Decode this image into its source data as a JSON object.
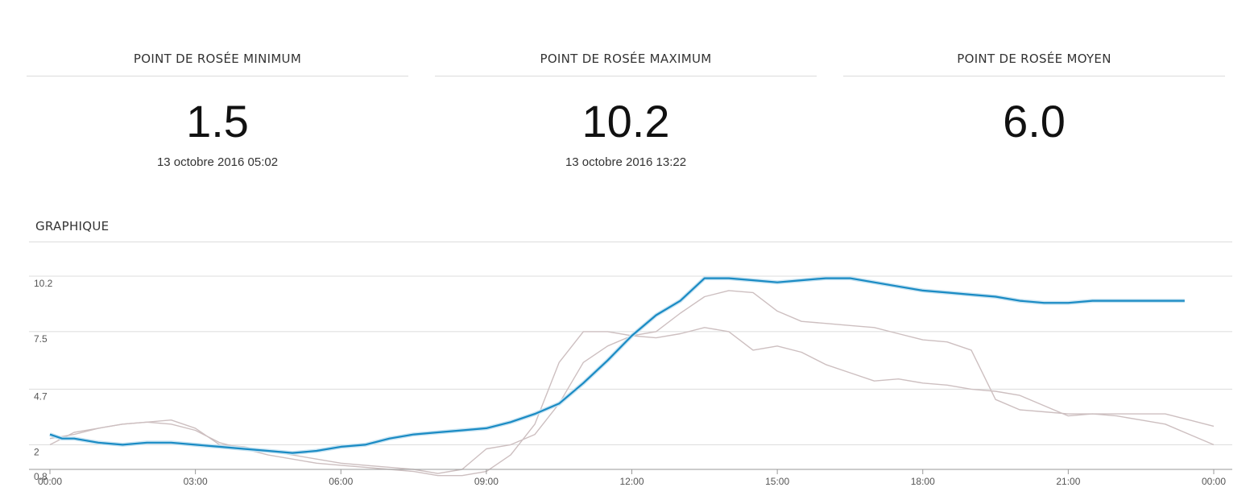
{
  "stats": {
    "min": {
      "title": "POINT DE ROSÉE MINIMUM",
      "value": "1.5",
      "date": "13 octobre 2016 05:02"
    },
    "max": {
      "title": "POINT DE ROSÉE MAXIMUM",
      "value": "10.2",
      "date": "13 octobre 2016 13:22"
    },
    "avg": {
      "title": "POINT DE ROSÉE MOYEN",
      "value": "6.0"
    }
  },
  "graph": {
    "title": "GRAPHIQUE"
  },
  "colors": {
    "main": "#1a8bc4",
    "history": "#cdbfc0",
    "grid": "#dcdcdc",
    "axis": "#999999"
  },
  "chart_data": {
    "type": "line",
    "title": "",
    "xlabel": "",
    "ylabel": "",
    "grid": true,
    "xlim_hours": [
      0,
      24
    ],
    "ylim": [
      0.8,
      10.2
    ],
    "yticks": [
      {
        "value": 0.8,
        "label": "0.8"
      },
      {
        "value": 2,
        "label": "2"
      },
      {
        "value": 4.7,
        "label": "4.7"
      },
      {
        "value": 7.5,
        "label": "7.5"
      },
      {
        "value": 10.2,
        "label": "10.2"
      }
    ],
    "xticks": [
      "00:00",
      "03:00",
      "06:00",
      "09:00",
      "12:00",
      "15:00",
      "18:00",
      "21:00",
      "00:00"
    ],
    "series": [
      {
        "role": "main",
        "x": [
          0,
          0.25,
          0.5,
          1,
          1.5,
          2,
          2.5,
          3,
          3.5,
          4,
          4.5,
          5,
          5.5,
          6,
          6.5,
          7,
          7.5,
          8,
          8.5,
          9,
          9.5,
          10,
          10.5,
          11,
          11.5,
          12,
          12.5,
          13,
          13.5,
          14,
          14.5,
          15,
          15.5,
          16,
          16.5,
          17,
          17.5,
          18,
          18.5,
          19,
          19.5,
          20,
          20.5,
          21,
          21.5,
          22,
          22.5,
          23,
          23.4
        ],
        "y": [
          2.5,
          2.3,
          2.3,
          2.1,
          2.0,
          2.1,
          2.1,
          2.0,
          1.9,
          1.8,
          1.7,
          1.6,
          1.7,
          1.9,
          2.0,
          2.3,
          2.5,
          2.6,
          2.7,
          2.8,
          3.1,
          3.5,
          4.0,
          5.0,
          6.1,
          7.3,
          8.3,
          9.0,
          10.1,
          10.1,
          10.0,
          9.9,
          10.0,
          10.1,
          10.1,
          9.9,
          9.7,
          9.5,
          9.4,
          9.3,
          9.2,
          9.0,
          8.9,
          8.9,
          9.0,
          9.0,
          9.0,
          9.0,
          9.0
        ]
      },
      {
        "role": "history",
        "x": [
          0,
          0.5,
          1,
          1.5,
          2,
          2.5,
          3,
          3.5,
          4,
          4.5,
          5,
          5.5,
          6,
          6.5,
          7,
          7.5,
          8,
          8.5,
          9,
          9.5,
          10,
          10.5,
          11,
          11.5,
          12,
          12.5,
          13,
          13.5,
          14,
          14.5,
          15,
          15.5,
          16,
          16.5,
          17,
          17.5,
          18,
          18.5,
          19,
          19.5,
          20,
          20.5,
          21,
          21.5,
          22,
          22.5,
          23,
          23.5,
          24
        ],
        "y": [
          2.0,
          2.6,
          2.8,
          3.0,
          3.1,
          3.0,
          2.7,
          2.1,
          1.8,
          1.5,
          1.3,
          1.1,
          1.0,
          0.9,
          0.8,
          0.7,
          0.5,
          0.5,
          0.7,
          1.5,
          3.0,
          6.0,
          7.5,
          7.5,
          7.3,
          7.2,
          7.4,
          7.7,
          7.5,
          6.6,
          6.8,
          6.5,
          5.9,
          5.5,
          5.1,
          5.2,
          5.0,
          4.9,
          4.7,
          4.6,
          4.4,
          3.9,
          3.4,
          3.5,
          3.4,
          3.2,
          3.0,
          2.5,
          2.0
        ]
      },
      {
        "role": "history",
        "x": [
          0,
          0.5,
          1,
          1.5,
          2,
          2.5,
          3,
          3.5,
          4,
          4.5,
          5,
          5.5,
          6,
          6.5,
          7,
          7.5,
          8,
          8.5,
          9,
          9.5,
          10,
          10.5,
          11,
          11.5,
          12,
          12.5,
          13,
          13.5,
          14,
          14.5,
          15,
          15.5,
          16,
          16.5,
          17,
          17.5,
          18,
          18.5,
          19,
          19.5,
          20,
          20.5,
          21,
          21.5,
          22,
          22.5,
          23,
          23.5,
          24
        ],
        "y": [
          2.3,
          2.5,
          2.8,
          3.0,
          3.1,
          3.2,
          2.8,
          2.0,
          1.9,
          1.7,
          1.5,
          1.3,
          1.1,
          1.0,
          0.9,
          0.8,
          0.6,
          0.8,
          1.8,
          2.0,
          2.5,
          4.0,
          6.0,
          6.8,
          7.3,
          7.5,
          8.4,
          9.2,
          9.5,
          9.4,
          8.5,
          8.0,
          7.9,
          7.8,
          7.7,
          7.4,
          7.1,
          7.0,
          6.6,
          4.2,
          3.7,
          3.6,
          3.5,
          3.5,
          3.5,
          3.5,
          3.5,
          3.2,
          2.9
        ]
      }
    ]
  }
}
